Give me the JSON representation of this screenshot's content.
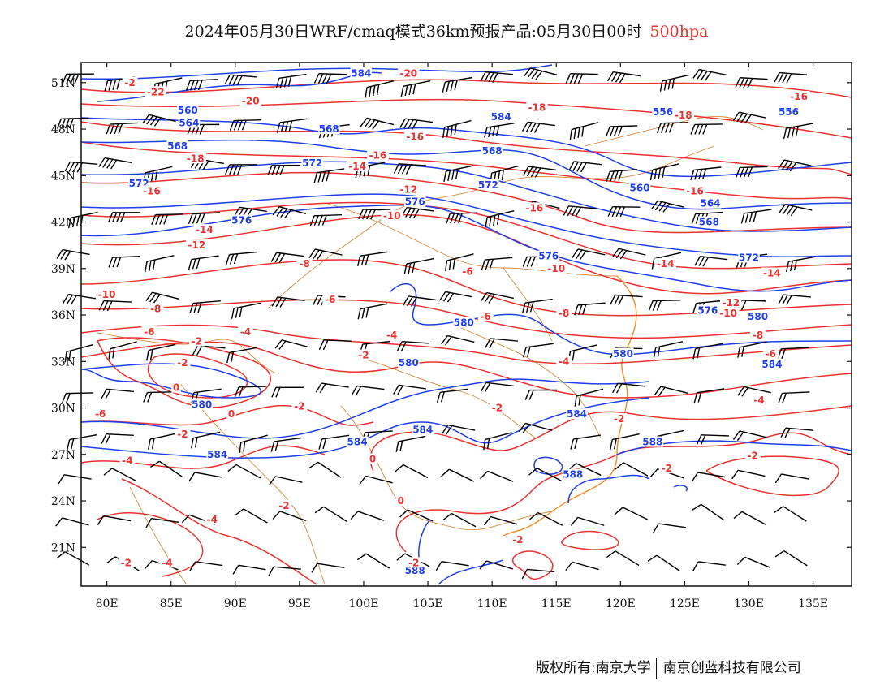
{
  "title": {
    "main": "2024年05月30日WRF/cmaq模式36km预报产品:05月30日00时",
    "level": "500hpa",
    "level_color": "#e8322f"
  },
  "footer": {
    "copyright": "版权所有:南京大学",
    "company": "南京创蓝科技有限公司"
  },
  "axes": {
    "lon_range": [
      78,
      138
    ],
    "lat_range": [
      18.5,
      52.3
    ],
    "x_ticks": [
      "80E",
      "85E",
      "90E",
      "95E",
      "100E",
      "105E",
      "110E",
      "115E",
      "120E",
      "125E",
      "130E",
      "135E"
    ],
    "x_tick_values": [
      80,
      85,
      90,
      95,
      100,
      105,
      110,
      115,
      120,
      125,
      130,
      135
    ],
    "y_ticks": [
      "51N",
      "48N",
      "45N",
      "42N",
      "39N",
      "36N",
      "33N",
      "30N",
      "27N",
      "24N",
      "21N"
    ],
    "y_tick_values": [
      51,
      48,
      45,
      42,
      39,
      36,
      33,
      30,
      27,
      24,
      21
    ]
  },
  "colors": {
    "geopotential": "#1f3fe6",
    "temperature": "#e8322f",
    "boundary": "#d58a3c",
    "coast": "#f08a24",
    "barb": "#000000"
  },
  "geopotential_labels": [
    {
      "text": "584",
      "lon": 99.8,
      "lat": 51.6
    },
    {
      "text": "560",
      "lon": 86.3,
      "lat": 49.2
    },
    {
      "text": "564",
      "lon": 86.4,
      "lat": 48.4
    },
    {
      "text": "568",
      "lon": 85.5,
      "lat": 46.9
    },
    {
      "text": "572",
      "lon": 82.5,
      "lat": 44.5
    },
    {
      "text": "576",
      "lon": 90.5,
      "lat": 42.1
    },
    {
      "text": "568",
      "lon": 97.3,
      "lat": 48.0
    },
    {
      "text": "572",
      "lon": 96.0,
      "lat": 45.8
    },
    {
      "text": "576",
      "lon": 104.0,
      "lat": 43.3
    },
    {
      "text": "584",
      "lon": 110.7,
      "lat": 48.8
    },
    {
      "text": "568",
      "lon": 110.0,
      "lat": 46.6
    },
    {
      "text": "572",
      "lon": 109.7,
      "lat": 44.4
    },
    {
      "text": "556",
      "lon": 123.3,
      "lat": 49.1
    },
    {
      "text": "556",
      "lon": 133.1,
      "lat": 49.1
    },
    {
      "text": "560",
      "lon": 121.5,
      "lat": 44.2
    },
    {
      "text": "564",
      "lon": 127.0,
      "lat": 43.2
    },
    {
      "text": "568",
      "lon": 126.9,
      "lat": 42.0
    },
    {
      "text": "572",
      "lon": 130.0,
      "lat": 39.7
    },
    {
      "text": "576",
      "lon": 114.4,
      "lat": 39.8
    },
    {
      "text": "576",
      "lon": 126.8,
      "lat": 36.3
    },
    {
      "text": "580",
      "lon": 130.7,
      "lat": 35.9
    },
    {
      "text": "580",
      "lon": 107.8,
      "lat": 35.5
    },
    {
      "text": "580",
      "lon": 103.5,
      "lat": 32.9
    },
    {
      "text": "580",
      "lon": 87.4,
      "lat": 30.2
    },
    {
      "text": "584",
      "lon": 131.8,
      "lat": 32.8
    },
    {
      "text": "580",
      "lon": 120.2,
      "lat": 33.5
    },
    {
      "text": "584",
      "lon": 116.6,
      "lat": 29.6
    },
    {
      "text": "584",
      "lon": 104.6,
      "lat": 28.6
    },
    {
      "text": "584",
      "lon": 99.5,
      "lat": 27.8
    },
    {
      "text": "584",
      "lon": 88.6,
      "lat": 27.0
    },
    {
      "text": "588",
      "lon": 122.5,
      "lat": 27.8
    },
    {
      "text": "588",
      "lon": 116.3,
      "lat": 25.7
    },
    {
      "text": "588",
      "lon": 104.0,
      "lat": 19.5
    }
  ],
  "temperature_labels": [
    {
      "text": "-2",
      "lon": 81.8,
      "lat": 51.0
    },
    {
      "text": "-22",
      "lon": 83.8,
      "lat": 50.4
    },
    {
      "text": "-20",
      "lon": 91.2,
      "lat": 49.8
    },
    {
      "text": "-18",
      "lon": 86.9,
      "lat": 46.1
    },
    {
      "text": "-16",
      "lon": 83.5,
      "lat": 44.0
    },
    {
      "text": "-14",
      "lon": 87.6,
      "lat": 41.5
    },
    {
      "text": "-12",
      "lon": 87.0,
      "lat": 40.5
    },
    {
      "text": "-10",
      "lon": 80.0,
      "lat": 37.3
    },
    {
      "text": "-8",
      "lon": 83.8,
      "lat": 36.4
    },
    {
      "text": "-6",
      "lon": 83.3,
      "lat": 34.9
    },
    {
      "text": "-2",
      "lon": 87.0,
      "lat": 34.3
    },
    {
      "text": "-4",
      "lon": 90.8,
      "lat": 34.9
    },
    {
      "text": "-2",
      "lon": 85.9,
      "lat": 32.9
    },
    {
      "text": "0",
      "lon": 85.4,
      "lat": 31.3
    },
    {
      "text": "0",
      "lon": 89.7,
      "lat": 29.6
    },
    {
      "text": "-6",
      "lon": 79.5,
      "lat": 29.6
    },
    {
      "text": "-2",
      "lon": 85.9,
      "lat": 28.3
    },
    {
      "text": "-4",
      "lon": 81.6,
      "lat": 26.6
    },
    {
      "text": "-4",
      "lon": 88.2,
      "lat": 22.8
    },
    {
      "text": "-2",
      "lon": 81.5,
      "lat": 20.0
    },
    {
      "text": "-4",
      "lon": 84.7,
      "lat": 20.0
    },
    {
      "text": "-2",
      "lon": 93.8,
      "lat": 23.7
    },
    {
      "text": "-2",
      "lon": 95.0,
      "lat": 30.1
    },
    {
      "text": "-2",
      "lon": 100.0,
      "lat": 33.4
    },
    {
      "text": "-4",
      "lon": 102.2,
      "lat": 34.7
    },
    {
      "text": "-8",
      "lon": 95.4,
      "lat": 39.3
    },
    {
      "text": "-6",
      "lon": 97.4,
      "lat": 37.0
    },
    {
      "text": "-6",
      "lon": 108.1,
      "lat": 38.8
    },
    {
      "text": "-6",
      "lon": 109.5,
      "lat": 35.9
    },
    {
      "text": "-2",
      "lon": 110.4,
      "lat": 30.0
    },
    {
      "text": "-4",
      "lon": 115.6,
      "lat": 33.0
    },
    {
      "text": "0",
      "lon": 100.7,
      "lat": 26.7
    },
    {
      "text": "0",
      "lon": 102.9,
      "lat": 24.0
    },
    {
      "text": "-2",
      "lon": 103.9,
      "lat": 20.0
    },
    {
      "text": "-2",
      "lon": 112.0,
      "lat": 21.5
    },
    {
      "text": "-2",
      "lon": 119.9,
      "lat": 29.3
    },
    {
      "text": "-2",
      "lon": 123.6,
      "lat": 26.1
    },
    {
      "text": "-2",
      "lon": 130.3,
      "lat": 26.9
    },
    {
      "text": "-4",
      "lon": 130.8,
      "lat": 30.5
    },
    {
      "text": "-8",
      "lon": 115.6,
      "lat": 36.1
    },
    {
      "text": "-10",
      "lon": 115.0,
      "lat": 39.0
    },
    {
      "text": "-6",
      "lon": 131.7,
      "lat": 33.5
    },
    {
      "text": "-8",
      "lon": 130.7,
      "lat": 34.7
    },
    {
      "text": "-10",
      "lon": 128.4,
      "lat": 36.1
    },
    {
      "text": "-12",
      "lon": 128.6,
      "lat": 36.8
    },
    {
      "text": "-14",
      "lon": 131.8,
      "lat": 38.7
    },
    {
      "text": "-14",
      "lon": 123.5,
      "lat": 39.3
    },
    {
      "text": "-16",
      "lon": 113.3,
      "lat": 42.9
    },
    {
      "text": "-16",
      "lon": 125.8,
      "lat": 44.0
    },
    {
      "text": "-18",
      "lon": 124.9,
      "lat": 48.9
    },
    {
      "text": "-16",
      "lon": 133.9,
      "lat": 50.1
    },
    {
      "text": "-18",
      "lon": 113.5,
      "lat": 49.4
    },
    {
      "text": "-16",
      "lon": 104.0,
      "lat": 47.5
    },
    {
      "text": "-16",
      "lon": 101.1,
      "lat": 46.3
    },
    {
      "text": "-14",
      "lon": 99.5,
      "lat": 45.6
    },
    {
      "text": "-12",
      "lon": 103.5,
      "lat": 44.1
    },
    {
      "text": "-10",
      "lon": 102.2,
      "lat": 42.4
    },
    {
      "text": "-20",
      "lon": 103.5,
      "lat": 51.6
    }
  ]
}
